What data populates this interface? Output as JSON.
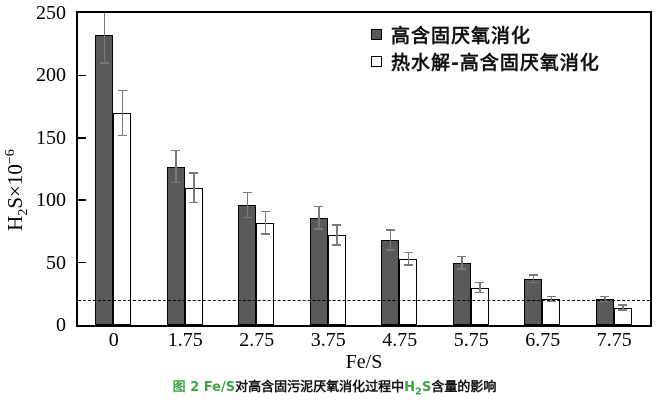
{
  "chart_data": {
    "type": "bar",
    "title": "",
    "categories": [
      "0",
      "1.75",
      "2.75",
      "3.75",
      "4.75",
      "5.75",
      "6.75",
      "7.75"
    ],
    "series": [
      {
        "name": "高含固厌氧消化",
        "style": "dark-filled",
        "values": [
          232,
          127,
          96,
          86,
          68,
          50,
          37,
          21
        ],
        "errors": [
          22,
          13,
          10,
          9,
          8,
          5,
          3,
          2
        ]
      },
      {
        "name": "热水解-高含固厌氧消化",
        "style": "white-hollow",
        "values": [
          170,
          110,
          82,
          72,
          53,
          30,
          21,
          14
        ],
        "errors": [
          18,
          12,
          9,
          8,
          5,
          4,
          2,
          2
        ]
      }
    ],
    "xlabel": "Fe/S",
    "ylabel": {
      "prefix": "H",
      "sub": "2",
      "mid": "S×10",
      "sup": "−6"
    },
    "yticks": [
      0,
      50,
      100,
      150,
      200,
      250
    ],
    "ylim": [
      0,
      250
    ],
    "reference_line": 20,
    "reference_line_style": "dashed",
    "grid": false,
    "legend_position": "top-right-inside",
    "error_bars": true
  },
  "legend": {
    "items": [
      {
        "marker": "filled-square",
        "label": "高含固厌氧消化"
      },
      {
        "marker": "hollow-square",
        "label": "热水解-高含固厌氧消化"
      }
    ]
  },
  "caption": {
    "part1": "图 2 Fe/S",
    "part2": "对高含固污泥厌氧消化过程中",
    "part3_base": "H",
    "part3_sub": "2",
    "part3_end": "S",
    "part4": "含量的影响"
  },
  "colors": {
    "bar_dark": "#595959",
    "bar_light": "#ffffff",
    "bar_border": "#000000",
    "error": "#7a7a7a",
    "axis": "#000000",
    "caption_green": "#3fa344",
    "caption_black": "#111111"
  }
}
